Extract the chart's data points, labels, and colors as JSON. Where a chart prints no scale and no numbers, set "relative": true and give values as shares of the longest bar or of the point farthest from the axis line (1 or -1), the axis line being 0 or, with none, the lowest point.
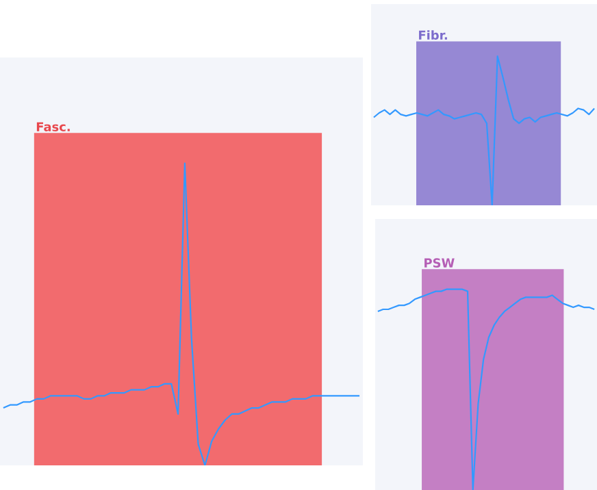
{
  "chart_data": [
    {
      "type": "line",
      "relative": true,
      "categories": [
        null,
        null,
        null,
        null,
        null,
        null,
        null,
        null,
        null,
        null,
        null,
        null,
        null,
        null,
        null,
        null,
        null,
        null,
        null,
        null,
        null,
        null,
        null,
        null,
        null,
        null,
        null,
        null,
        null,
        null,
        null,
        null,
        null,
        null,
        null,
        null,
        null,
        null,
        null,
        null,
        null,
        null,
        null,
        null,
        null,
        null,
        null,
        null,
        null,
        null,
        null,
        null,
        null,
        null
      ],
      "series": [
        {
          "color": "#3399ff",
          "values": [
            0.19,
            0.2,
            0.2,
            0.21,
            0.21,
            0.22,
            0.22,
            0.23,
            0.23,
            0.23,
            0.23,
            0.23,
            0.22,
            0.22,
            0.23,
            0.23,
            0.24,
            0.24,
            0.24,
            0.25,
            0.25,
            0.25,
            0.26,
            0.26,
            0.27,
            0.27,
            0.17,
            1.0,
            0.42,
            0.07,
            0.0,
            0.08,
            0.12,
            0.15,
            0.17,
            0.17,
            0.18,
            0.19,
            0.19,
            0.2,
            0.21,
            0.21,
            0.21,
            0.22,
            0.22,
            0.22,
            0.23,
            0.23,
            0.23,
            0.23,
            0.23,
            0.23,
            0.23,
            0.23
          ]
        }
      ],
      "annotations": [
        "Fasc."
      ]
    },
    {
      "type": "line",
      "relative": true,
      "categories": [
        null,
        null,
        null,
        null,
        null,
        null,
        null,
        null,
        null,
        null,
        null,
        null,
        null,
        null,
        null,
        null,
        null,
        null,
        null,
        null,
        null,
        null,
        null,
        null,
        null,
        null,
        null,
        null,
        null,
        null,
        null,
        null,
        null,
        null,
        null,
        null,
        null,
        null,
        null,
        null,
        null,
        null
      ],
      "series": [
        {
          "color": "#3399ff",
          "values": [
            0.59,
            0.62,
            0.64,
            0.61,
            0.64,
            0.61,
            0.6,
            0.61,
            0.62,
            0.61,
            0.6,
            0.62,
            0.64,
            0.61,
            0.6,
            0.58,
            0.59,
            0.6,
            0.61,
            0.62,
            0.61,
            0.55,
            0.0,
            1.0,
            0.86,
            0.71,
            0.58,
            0.55,
            0.58,
            0.59,
            0.56,
            0.59,
            0.6,
            0.61,
            0.62,
            0.61,
            0.6,
            0.62,
            0.65,
            0.64,
            0.61,
            0.65
          ]
        }
      ],
      "annotations": [
        "Fibr."
      ]
    },
    {
      "type": "line",
      "relative": true,
      "categories": [
        null,
        null,
        null,
        null,
        null,
        null,
        null,
        null,
        null,
        null,
        null,
        null,
        null,
        null,
        null,
        null,
        null,
        null,
        null,
        null,
        null,
        null,
        null,
        null,
        null,
        null,
        null,
        null,
        null,
        null,
        null,
        null,
        null,
        null,
        null,
        null,
        null,
        null,
        null,
        null,
        null,
        null
      ],
      "series": [
        {
          "color": "#3399ff",
          "values": [
            0.89,
            0.9,
            0.9,
            0.91,
            0.92,
            0.92,
            0.93,
            0.95,
            0.96,
            0.97,
            0.98,
            0.99,
            0.99,
            1.0,
            1.0,
            1.0,
            1.0,
            0.99,
            0.0,
            0.43,
            0.65,
            0.76,
            0.82,
            0.86,
            0.89,
            0.91,
            0.93,
            0.95,
            0.96,
            0.96,
            0.96,
            0.96,
            0.96,
            0.97,
            0.95,
            0.93,
            0.92,
            0.91,
            0.92,
            0.91,
            0.91,
            0.9
          ]
        }
      ],
      "annotations": [
        "PSW"
      ]
    }
  ]
}
